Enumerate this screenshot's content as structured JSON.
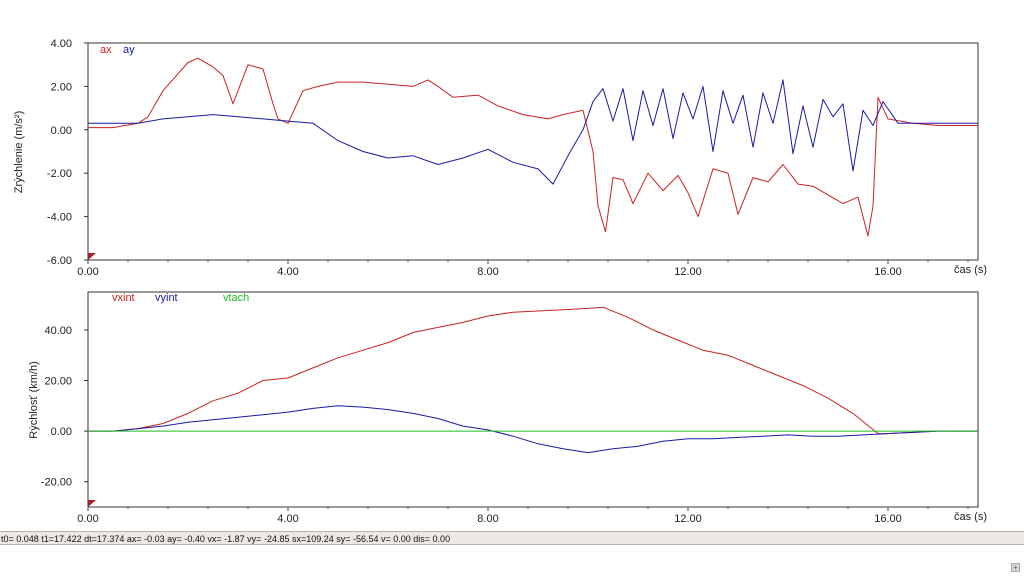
{
  "status_bar": {
    "text": "t0= 0.048 t1=17.422 dt=17.374   ax= -0.03 ay= -0.40 vx= -1.87 vy= -24.85 sx=109.24 sy= -56.54 v= 0.00 dis= 0.00"
  },
  "corner_button": "+",
  "colors": {
    "red": "#cc2222",
    "blue": "#1a1aa6",
    "green": "#22bb22",
    "marker": "#aa2222"
  },
  "chart_data": [
    {
      "type": "line",
      "ylabel": "Zrýchlenie (m/s²)",
      "xlabel": "čas (s)",
      "xlim": [
        0,
        17.8
      ],
      "ylim": [
        -6,
        4
      ],
      "xticks": [
        "0.00",
        "4.00",
        "8.00",
        "12.00",
        "16.00"
      ],
      "yticks": [
        "4.00",
        "2.00",
        "0.00",
        "-2.00",
        "-4.00",
        "-6.00"
      ],
      "grid": false,
      "legend": "top-left",
      "series": [
        {
          "name": "ax",
          "color": "#cc2222",
          "x": [
            0,
            0.5,
            1.0,
            1.2,
            1.5,
            2.0,
            2.2,
            2.5,
            2.7,
            2.9,
            3.2,
            3.5,
            3.7,
            3.8,
            4.0,
            4.3,
            4.6,
            5.0,
            5.5,
            6.0,
            6.5,
            6.8,
            7.0,
            7.3,
            7.8,
            8.2,
            8.7,
            9.2,
            9.5,
            9.9,
            10.1,
            10.2,
            10.35,
            10.5,
            10.7,
            10.9,
            11.2,
            11.5,
            11.8,
            12.0,
            12.2,
            12.5,
            12.8,
            13.0,
            13.3,
            13.6,
            13.9,
            14.2,
            14.5,
            14.8,
            15.1,
            15.4,
            15.6,
            15.7,
            15.8,
            16.0,
            16.5,
            17.0,
            17.8
          ],
          "y": [
            0.1,
            0.1,
            0.3,
            0.6,
            1.8,
            3.1,
            3.3,
            2.9,
            2.5,
            1.2,
            3.0,
            2.8,
            1.2,
            0.5,
            0.3,
            1.8,
            2.0,
            2.2,
            2.2,
            2.1,
            2.0,
            2.3,
            2.0,
            1.5,
            1.6,
            1.1,
            0.7,
            0.5,
            0.7,
            0.9,
            -1.0,
            -3.5,
            -4.7,
            -2.2,
            -2.3,
            -3.4,
            -2.0,
            -2.8,
            -2.1,
            -2.9,
            -4.0,
            -1.8,
            -2.0,
            -3.9,
            -2.2,
            -2.4,
            -1.6,
            -2.5,
            -2.6,
            -3.0,
            -3.4,
            -3.1,
            -4.9,
            -3.5,
            1.5,
            0.5,
            0.3,
            0.2,
            0.2
          ]
        },
        {
          "name": "ay",
          "color": "#1a1aa6",
          "x": [
            0,
            0.5,
            1.0,
            1.5,
            2.0,
            2.5,
            3.0,
            3.5,
            4.0,
            4.5,
            5.0,
            5.5,
            6.0,
            6.5,
            7.0,
            7.5,
            8.0,
            8.5,
            9.0,
            9.3,
            9.6,
            9.9,
            10.1,
            10.3,
            10.5,
            10.7,
            10.9,
            11.1,
            11.3,
            11.5,
            11.7,
            11.9,
            12.1,
            12.3,
            12.5,
            12.7,
            12.9,
            13.1,
            13.3,
            13.5,
            13.7,
            13.9,
            14.1,
            14.3,
            14.5,
            14.7,
            14.9,
            15.1,
            15.3,
            15.5,
            15.7,
            15.9,
            16.2,
            16.6,
            17.0,
            17.8
          ],
          "y": [
            0.3,
            0.3,
            0.3,
            0.5,
            0.6,
            0.7,
            0.6,
            0.5,
            0.4,
            0.3,
            -0.5,
            -1.0,
            -1.3,
            -1.2,
            -1.6,
            -1.3,
            -0.9,
            -1.5,
            -1.8,
            -2.5,
            -1.2,
            0.0,
            1.3,
            1.9,
            0.4,
            1.9,
            -0.5,
            1.8,
            0.2,
            1.9,
            -0.4,
            1.7,
            0.5,
            2.0,
            -1.0,
            1.8,
            0.3,
            1.6,
            -0.8,
            1.7,
            0.3,
            2.3,
            -1.1,
            1.1,
            -0.8,
            1.4,
            0.6,
            1.2,
            -1.9,
            0.9,
            0.2,
            1.3,
            0.3,
            0.3,
            0.3,
            0.3
          ]
        }
      ],
      "markers": [
        {
          "x": 0,
          "y": -6
        }
      ]
    },
    {
      "type": "line",
      "ylabel": "Rýchlosť (km/h)",
      "xlabel": "čas (s)",
      "xlim": [
        0,
        17.8
      ],
      "ylim": [
        -30,
        55
      ],
      "xticks": [
        "0.00",
        "4.00",
        "8.00",
        "12.00",
        "16.00"
      ],
      "yticks": [
        "40.00",
        "20.00",
        "0.00",
        "-20.00"
      ],
      "grid": false,
      "legend": "top-left",
      "series": [
        {
          "name": "vxint",
          "color": "#cc2222",
          "x": [
            0,
            0.5,
            1.0,
            1.5,
            2.0,
            2.5,
            3.0,
            3.5,
            4.0,
            4.5,
            5.0,
            5.5,
            6.0,
            6.5,
            7.0,
            7.5,
            8.0,
            8.5,
            9.0,
            9.5,
            10.0,
            10.3,
            10.8,
            11.3,
            11.8,
            12.3,
            12.8,
            13.3,
            13.8,
            14.3,
            14.8,
            15.3,
            15.8,
            16.0,
            16.5,
            17.0,
            17.8
          ],
          "y": [
            0,
            0,
            1,
            3,
            7,
            12,
            15,
            20,
            21,
            25,
            29,
            32,
            35,
            39,
            41,
            43,
            45.5,
            47,
            47.5,
            48,
            48.5,
            49,
            45,
            40,
            36,
            32,
            30,
            26,
            22,
            18,
            13,
            7,
            -1,
            -1,
            -0.5,
            0,
            0
          ]
        },
        {
          "name": "vyint",
          "color": "#1a1aa6",
          "x": [
            0,
            0.5,
            1.0,
            1.5,
            2.0,
            2.5,
            3.0,
            3.5,
            4.0,
            4.5,
            5.0,
            5.5,
            6.0,
            6.5,
            7.0,
            7.5,
            8.0,
            8.5,
            9.0,
            9.5,
            10.0,
            10.5,
            11.0,
            11.5,
            12.0,
            12.5,
            13.0,
            13.5,
            14.0,
            14.5,
            15.0,
            15.5,
            16.0,
            16.5,
            17.0,
            17.8
          ],
          "y": [
            0,
            0,
            1,
            2,
            3.5,
            4.5,
            5.5,
            6.5,
            7.5,
            9,
            10,
            9.5,
            8.5,
            7,
            5,
            2,
            0.5,
            -2,
            -5,
            -7,
            -8.5,
            -7,
            -6,
            -4,
            -3,
            -3,
            -2.5,
            -2,
            -1.5,
            -2,
            -2,
            -1.5,
            -1,
            -0.5,
            0,
            0
          ]
        },
        {
          "name": "vtach",
          "color": "#22bb22",
          "x": [
            0,
            17.8
          ],
          "y": [
            0,
            0
          ]
        }
      ],
      "markers": [
        {
          "x": 0,
          "y": -30
        }
      ]
    }
  ]
}
